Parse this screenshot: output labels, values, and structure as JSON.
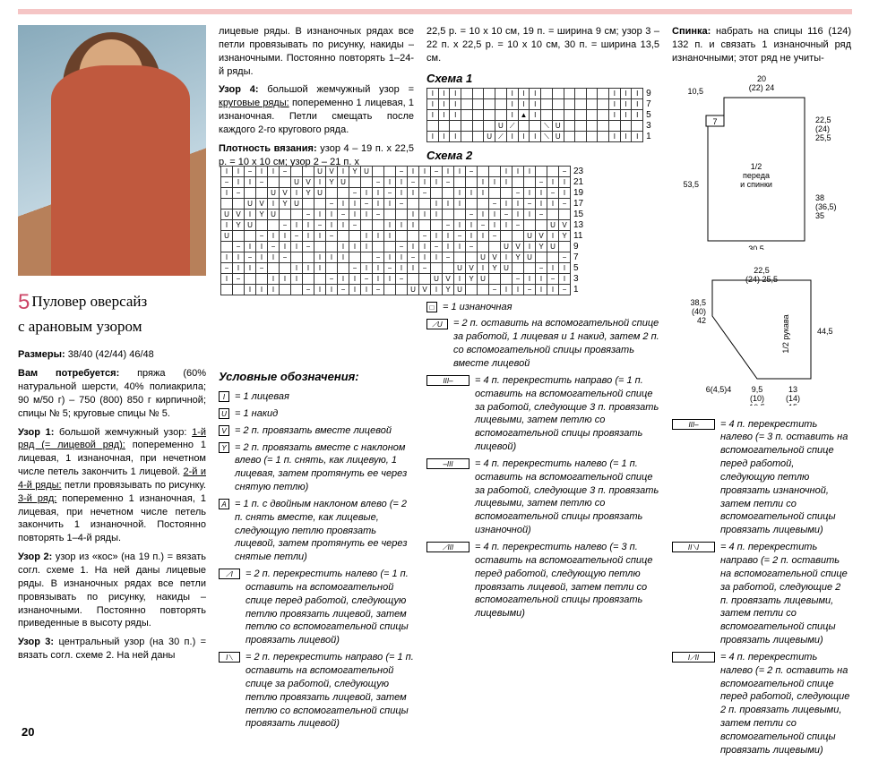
{
  "accent_color": "#c05a3e",
  "pink_bar": "#f5c5c5",
  "page_number": "20",
  "pattern_number": "5",
  "title_line1": "Пуловер оверсайз",
  "title_line2": "с арановым узором",
  "col1": {
    "sizes_label": "Размеры:",
    "sizes": "38/40 (42/44) 46/48",
    "materials_label": "Вам потребуется:",
    "materials": "пряжа (60% натуральной шерсти, 40% полиакрила; 90 м/50 г) – 750 (800) 850 г кирпичной; спицы № 5; круговые спицы № 5.",
    "uzor1_label": "Узор 1:",
    "uzor1_head": "большой жемчужный узор:",
    "uzor1_r1_u": "1-й ряд (= лицевой ряд):",
    "uzor1_r1": "попеременно 1 лицевая, 1 изнаночная, при нечетном числе петель закончить 1 лицевой.",
    "uzor1_r24_u": "2-й и 4-й ряды:",
    "uzor1_r24": "петли провязывать по рисунку.",
    "uzor1_r3_u": "3-й ряд:",
    "uzor1_r3": "попеременно 1 изнаночная, 1 лицевая, при нечетном числе петель закончить 1 изнаночной. Постоянно повторять 1–4-й ряды.",
    "uzor2_label": "Узор 2:",
    "uzor2": "узор из «кос» (на 19 п.) = вязать согл. схеме 1. На ней даны лицевые ряды. В изнаночных рядах все петли провязывать по рисунку, накиды – изнаночными. Постоянно повторять приведенные в высоту ряды.",
    "uzor3_label": "Узор 3:",
    "uzor3": "центральный узор (на 30 п.) = вязать согл. схеме 2. На ней даны"
  },
  "col2": {
    "p1": "лицевые ряды. В изнаночных рядах все петли провязывать по рисунку, накиды – изнаночными. Постоянно повторять 1–24-й ряды.",
    "uzor4_label": "Узор 4:",
    "uzor4_head": "большой жемчужный узор =",
    "uzor4_u": "круговые ряды:",
    "uzor4": "попеременно 1 лицевая, 1 изнаночная. Петли смещать после каждого 2-го кругового ряда.",
    "gauge_label": "Плотность вязания:",
    "gauge": "узор 4 – 19 п. х 22,5 р. = 10 х 10 см; узор 2 – 21 п. х",
    "legend_title": "Условные обозначения:",
    "legend": [
      {
        "sym": "I",
        "w": 1,
        "txt": "= 1 лицевая"
      },
      {
        "sym": "U",
        "w": 1,
        "txt": "= 1 накид"
      },
      {
        "sym": "V",
        "w": 1,
        "txt": "= 2 п. провязать вместе лицевой"
      },
      {
        "sym": "Y",
        "w": 1,
        "txt": "= 2 п. провязать вместе с наклоном влево (= 1 п. снять, как лицевую, 1 лицевая, затем протянуть ее через снятую петлю)"
      },
      {
        "sym": "A",
        "w": 1,
        "txt": "= 1 п. с двойным наклоном влево (= 2 п. снять вместе, как лицевые, следующую петлю провязать лицевой, затем протянуть ее через снятые петли)"
      },
      {
        "sym": "⟋I",
        "w": 2,
        "txt": "= 2 п. перекрестить налево (= 1 п. оставить на вспомогательной спице перед работой, следующую петлю провязать лицевой, затем петлю со вспомогательной спицы провязать лицевой)"
      },
      {
        "sym": "I⟍",
        "w": 2,
        "txt": "= 2 п. перекрестить направо (= 1 п. оставить на вспомогательной спице за работой, следующую петлю провязать лицевой, затем петлю со вспомогательной спицы провязать лицевой)"
      }
    ]
  },
  "col3": {
    "p1": "22,5 р. = 10 х 10 см, 19 п. = ширина 9 см; узор 3 – 22 п. х 22,5 р. = 10 х 10 см, 30 п. = ширина 13,5 см.",
    "chart1_label": "Схема 1",
    "chart2_label": "Схема 2",
    "chart1": {
      "cols": 19,
      "row_labels": [
        "9",
        "7",
        "5",
        "3",
        "1"
      ],
      "rows": [
        [
          "I",
          "I",
          "I",
          "",
          "",
          "",
          "",
          "I",
          "I",
          "I",
          "",
          "",
          "",
          "",
          "",
          "",
          "I",
          "I",
          "I"
        ],
        [
          "I",
          "I",
          "I",
          "",
          "",
          "",
          "",
          "I",
          "I",
          "I",
          "",
          "",
          "",
          "",
          "",
          "",
          "I",
          "I",
          "I"
        ],
        [
          "I",
          "I",
          "I",
          "",
          "",
          "",
          "",
          "I",
          "▲",
          "I",
          "",
          "",
          "",
          "",
          "",
          "",
          "I",
          "I",
          "I"
        ],
        [
          "",
          "",
          "",
          "",
          "",
          "",
          "U",
          "⟋",
          "",
          "",
          "⟍",
          "U",
          "",
          "",
          "",
          "",
          "",
          "",
          ""
        ],
        [
          "I",
          "I",
          "I",
          "",
          "",
          "U",
          "⟋",
          "I",
          "I",
          "I",
          "⟍",
          "U",
          "",
          "",
          "",
          "",
          "I",
          "I",
          "I"
        ]
      ]
    },
    "chart2": {
      "cols": 30,
      "row_labels": [
        "23",
        "21",
        "19",
        "17",
        "15",
        "13",
        "11",
        "9",
        "7",
        "5",
        "3",
        "1"
      ]
    },
    "legend": [
      {
        "sym": "□",
        "w": 1,
        "txt": "= 1 изнаночная"
      },
      {
        "sym": "⟋U",
        "w": 2,
        "txt": "= 2 п. оставить на вспомогательной спице за работой, 1 лицевая и 1 накид, затем 2 п. со вспомогательной спицы провязать вместе лицевой"
      },
      {
        "sym": "III–",
        "w": 4,
        "txt": "= 4 п. перекрестить направо (= 1 п. оставить на вспомогательной спице за работой, следующие 3 п. провязать лицевыми, затем петлю со вспомогательной спицы провязать лицевой)"
      },
      {
        "sym": "–III",
        "w": 4,
        "txt": "= 4 п. перекрестить налево (= 1 п. оставить на вспомогательной спице за работой, следующие 3 п. провязать лицевыми, затем петлю со вспомогательной спицы провязать изнаночной)"
      },
      {
        "sym": "⟋III",
        "w": 4,
        "txt": "= 4 п. перекрестить налево (= 3 п. оставить на вспомогательной спице перед работой, следующую петлю провязать лицевой, затем петли со вспомогательной спицы провязать лицевыми)"
      }
    ]
  },
  "col4": {
    "back_label": "Спинка:",
    "back": "набрать на спицы 116 (124) 132 п. и связать 1 изнаночный ряд изнаночными; этот ряд не учиты-",
    "schem_body": {
      "top_w": "20\n(22) 24",
      "top_left": "10,5",
      "neck": "7",
      "side_top": "22,5\n(24)\n25,5",
      "label": "1/2\nпереда\nи спинки",
      "side_l": "53,5",
      "side_r": "38\n(36,5)\n35",
      "bottom": "30,5\n(32,5) 34,5"
    },
    "schem_sleeve": {
      "top": "22,5\n(24) 25,5",
      "side_l": "38,5\n(40)\n42",
      "side_r": "44,5",
      "label": "1/2 рукава",
      "bot_l": "6(4,5)4",
      "bot_m1": "9,5\n(10)\n10,5",
      "bot_m2": "13\n(14)\n15"
    },
    "legend": [
      {
        "sym": "III–",
        "w": 4,
        "txt": "= 4 п. перекрестить налево (= 3 п. оставить на вспомогательной спице перед работой, следующую петлю провязать изнаночной, затем петли со вспомогательной спицы провязать лицевыми)"
      },
      {
        "sym": "II⟍I",
        "w": 4,
        "txt": "= 4 п. перекрестить направо (= 2 п. оставить на вспомогательной спице за работой, следующие 2 п. провязать лицевыми, затем петли со вспомогательной спицы провязать лицевыми)"
      },
      {
        "sym": "I⟋II",
        "w": 4,
        "txt": "= 4 п. перекрестить налево (= 2 п. оставить на вспомогательной спице перед работой, следующие 2 п. провязать лицевыми, затем петли со вспомогательной спицы провязать лицевыми)"
      }
    ]
  }
}
